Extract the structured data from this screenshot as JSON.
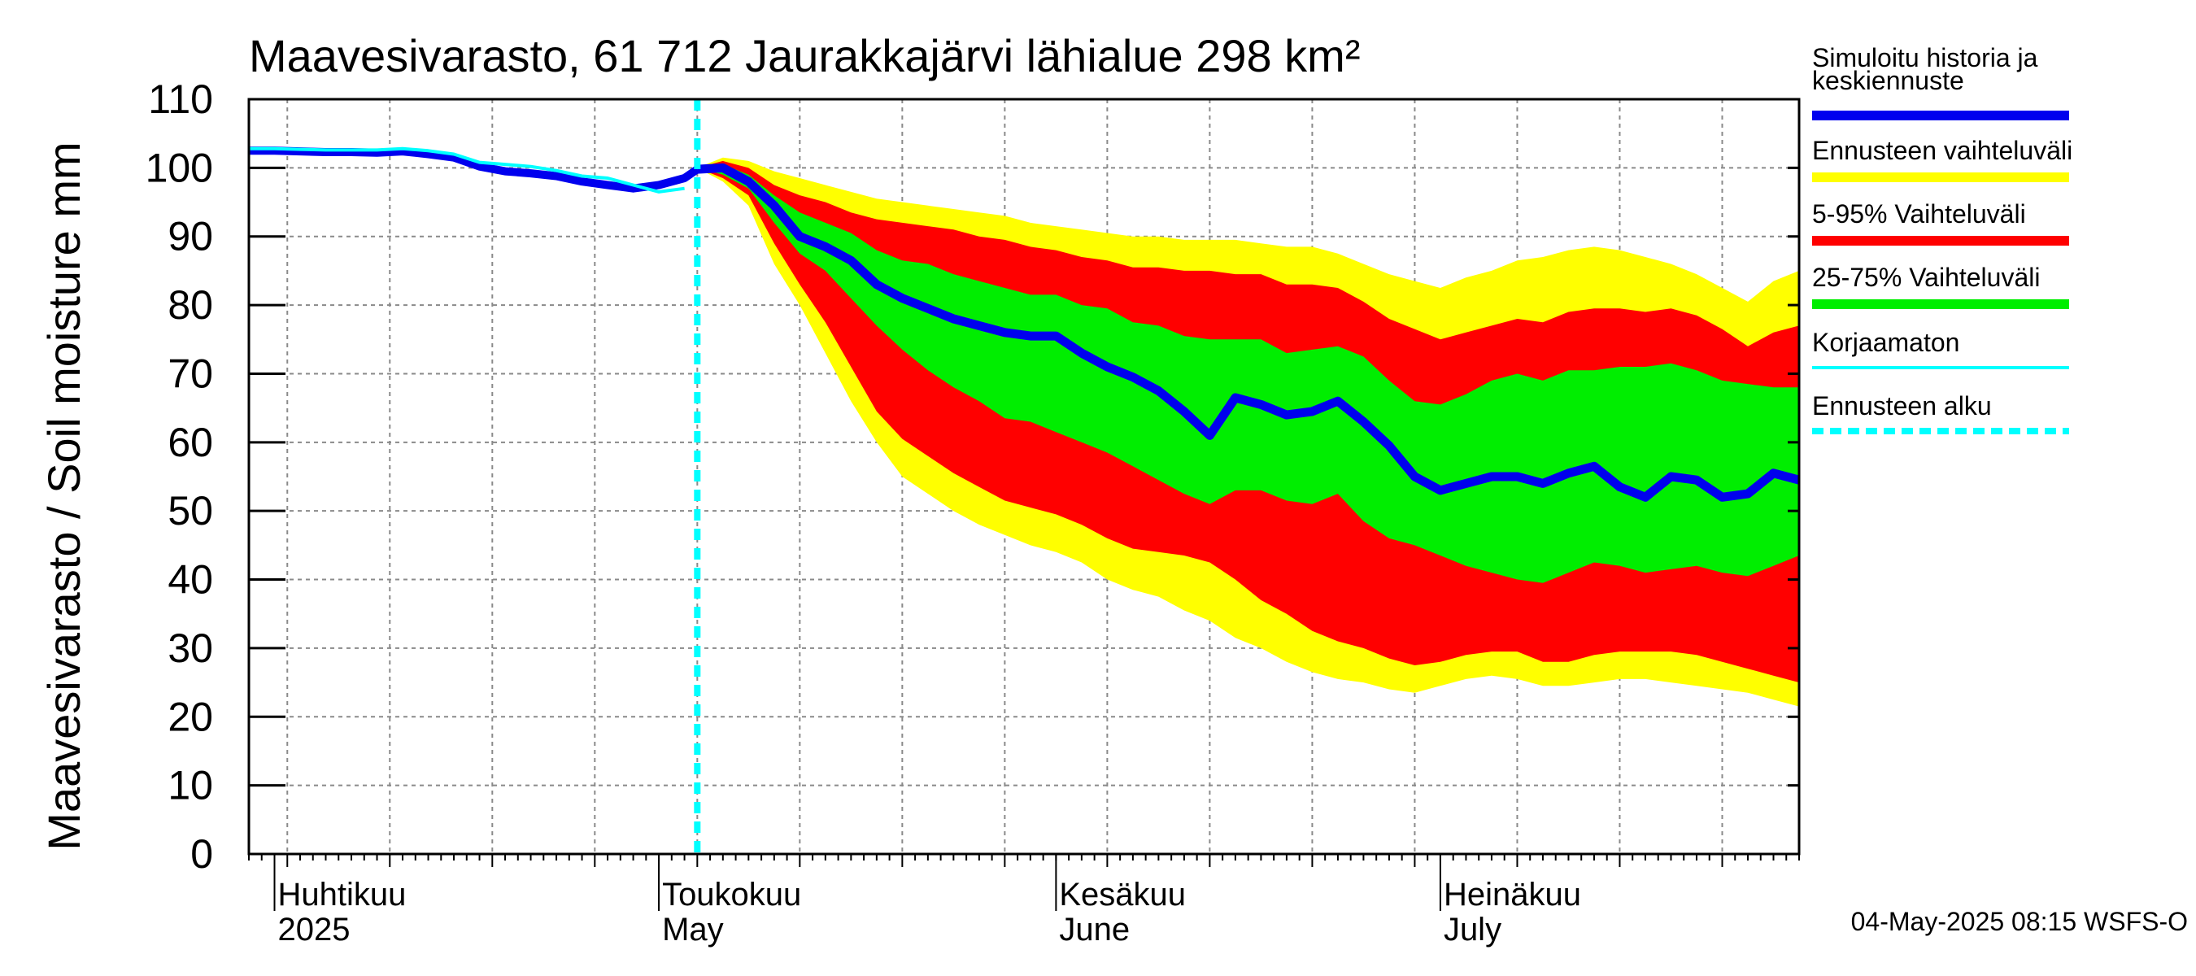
{
  "chart_data": {
    "type": "area",
    "title": "Maavesivarasto, 61 712 Jaurakkajärvi lähialue 298 km²",
    "ylabel": "Maavesivarasto / Soil moisture   mm",
    "ylim": [
      0,
      110
    ],
    "yticks": [
      "0",
      "10",
      "20",
      "30",
      "40",
      "50",
      "60",
      "70",
      "80",
      "90",
      "100",
      "110"
    ],
    "x_unit": "day of year 2025",
    "xlim": [
      89,
      210
    ],
    "forecast_start_day": 124,
    "month_labels": [
      {
        "fi": "Huhtikuu",
        "en": "2025",
        "day": 91
      },
      {
        "fi": "Toukokuu",
        "en": "May",
        "day": 121
      },
      {
        "fi": "Kesäkuu",
        "en": "June",
        "day": 152
      },
      {
        "fi": "Heinäkuu",
        "en": "July",
        "day": 182
      }
    ],
    "timestamp": "04-May-2025 08:15 WSFS-O",
    "legend": [
      {
        "key": "sim",
        "label_lines": [
          "Simuloitu historia ja",
          "keskiennuste"
        ],
        "color": "#0000ee",
        "style": "thick"
      },
      {
        "key": "range",
        "label_lines": [
          "Ennusteen vaihteluväli"
        ],
        "color": "#ffff00",
        "style": "thick"
      },
      {
        "key": "p5_95",
        "label_lines": [
          "5-95% Vaihteluväli"
        ],
        "color": "#ff0000",
        "style": "thick"
      },
      {
        "key": "p25_75",
        "label_lines": [
          "25-75% Vaihteluväli"
        ],
        "color": "#00ee00",
        "style": "thick"
      },
      {
        "key": "uncorr",
        "label_lines": [
          "Korjaamaton"
        ],
        "color": "#00ffff",
        "style": "thin"
      },
      {
        "key": "fstart",
        "label_lines": [
          "Ennusteen alku"
        ],
        "color": "#00ffff",
        "style": "dashed"
      }
    ],
    "history": {
      "days": [
        89,
        91,
        93,
        95,
        97,
        99,
        101,
        103,
        105,
        107,
        109,
        111,
        113,
        115,
        117,
        119,
        121,
        123,
        124
      ],
      "values": [
        102.5,
        102.5,
        102.4,
        102.3,
        102.3,
        102.2,
        102.4,
        102.0,
        101.5,
        100.2,
        99.5,
        99.2,
        98.8,
        98.0,
        97.5,
        97.0,
        97.5,
        98.5,
        99.8
      ]
    },
    "uncorrected": {
      "days": [
        89,
        91,
        93,
        95,
        97,
        99,
        101,
        103,
        105,
        107,
        109,
        111,
        113,
        115,
        117,
        119,
        121,
        123
      ],
      "values": [
        102.8,
        102.8,
        102.7,
        102.6,
        102.6,
        102.6,
        102.8,
        102.5,
        102.0,
        100.8,
        100.5,
        100.2,
        99.6,
        98.8,
        98.5,
        97.5,
        96.5,
        97.0
      ]
    },
    "forecast": {
      "days": [
        124,
        126,
        128,
        130,
        132,
        134,
        136,
        138,
        140,
        142,
        144,
        146,
        148,
        150,
        152,
        154,
        156,
        158,
        160,
        162,
        164,
        166,
        168,
        170,
        172,
        174,
        176,
        178,
        180,
        182,
        184,
        186,
        188,
        190,
        192,
        194,
        196,
        198,
        200,
        202,
        204,
        206,
        208,
        210
      ],
      "median": [
        99.8,
        100.0,
        98.0,
        94.5,
        90.0,
        88.5,
        86.5,
        83.0,
        81.0,
        79.5,
        78.0,
        77.0,
        76.0,
        75.5,
        75.5,
        73.0,
        71.0,
        69.5,
        67.5,
        64.5,
        61.0,
        66.5,
        65.5,
        64.0,
        64.5,
        66.0,
        63.0,
        59.5,
        55.0,
        53.0,
        54.0,
        55.0,
        55.0,
        54.0,
        55.5,
        56.5,
        53.5,
        52.0,
        55.0,
        54.5,
        52.0,
        52.5,
        55.5,
        54.5
      ],
      "p25": [
        100.0,
        99.0,
        97.0,
        92.0,
        87.5,
        85.0,
        81.0,
        77.0,
        73.5,
        70.5,
        68.0,
        66.0,
        63.5,
        63.0,
        61.5,
        60.0,
        58.5,
        56.5,
        54.5,
        52.5,
        51.0,
        53.0,
        53.0,
        51.5,
        51.0,
        52.5,
        48.5,
        46.0,
        45.0,
        43.5,
        42.0,
        41.0,
        40.0,
        39.5,
        41.0,
        42.5,
        42.0,
        41.0,
        41.5,
        42.0,
        41.0,
        40.5,
        42.0,
        43.5
      ],
      "p75": [
        100.0,
        100.5,
        99.0,
        96.0,
        93.5,
        92.0,
        90.5,
        88.0,
        86.5,
        86.0,
        84.5,
        83.5,
        82.5,
        81.5,
        81.5,
        80.0,
        79.5,
        77.5,
        77.0,
        75.5,
        75.0,
        75.0,
        75.0,
        73.0,
        73.5,
        74.0,
        72.5,
        69.0,
        66.0,
        65.5,
        67.0,
        69.0,
        70.0,
        69.0,
        70.5,
        70.5,
        71.0,
        71.0,
        71.5,
        70.5,
        69.0,
        68.5,
        68.0,
        68.0
      ],
      "p5": [
        100.0,
        98.5,
        96.0,
        89.0,
        83.0,
        77.5,
        71.0,
        64.5,
        60.5,
        58.0,
        55.5,
        53.5,
        51.5,
        50.5,
        49.5,
        48.0,
        46.0,
        44.5,
        44.0,
        43.5,
        42.5,
        40.0,
        37.0,
        35.0,
        32.5,
        31.0,
        30.0,
        28.5,
        27.5,
        28.0,
        29.0,
        29.5,
        29.5,
        28.0,
        28.0,
        29.0,
        29.5,
        29.5,
        29.5,
        29.0,
        28.0,
        27.0,
        26.0,
        25.0
      ],
      "p95": [
        100.0,
        101.0,
        100.0,
        97.5,
        96.0,
        95.0,
        93.5,
        92.5,
        92.0,
        91.5,
        91.0,
        90.0,
        89.5,
        88.5,
        88.0,
        87.0,
        86.5,
        85.5,
        85.5,
        85.0,
        85.0,
        84.5,
        84.5,
        83.0,
        83.0,
        82.5,
        80.5,
        78.0,
        76.5,
        75.0,
        76.0,
        77.0,
        78.0,
        77.5,
        79.0,
        79.5,
        79.5,
        79.0,
        79.5,
        78.5,
        76.5,
        74.0,
        76.0,
        77.0
      ],
      "min": [
        100.0,
        98.0,
        94.5,
        86.0,
        80.0,
        73.0,
        66.0,
        60.0,
        55.0,
        52.5,
        50.0,
        48.0,
        46.5,
        45.0,
        44.0,
        42.5,
        40.0,
        38.5,
        37.5,
        35.5,
        34.0,
        31.5,
        30.0,
        28.0,
        26.5,
        25.5,
        25.0,
        24.0,
        23.5,
        24.5,
        25.5,
        26.0,
        25.5,
        24.5,
        24.5,
        25.0,
        25.5,
        25.5,
        25.0,
        24.5,
        24.0,
        23.5,
        22.5,
        21.5
      ],
      "max": [
        100.0,
        101.5,
        101.0,
        99.5,
        98.5,
        97.5,
        96.5,
        95.5,
        95.0,
        94.5,
        94.0,
        93.5,
        93.0,
        92.0,
        91.5,
        91.0,
        90.5,
        90.0,
        90.0,
        89.5,
        89.5,
        89.5,
        89.0,
        88.5,
        88.5,
        87.5,
        86.0,
        84.5,
        83.5,
        82.5,
        84.0,
        85.0,
        86.5,
        87.0,
        88.0,
        88.5,
        88.0,
        87.0,
        86.0,
        84.5,
        82.5,
        80.5,
        83.5,
        85.0
      ]
    }
  }
}
